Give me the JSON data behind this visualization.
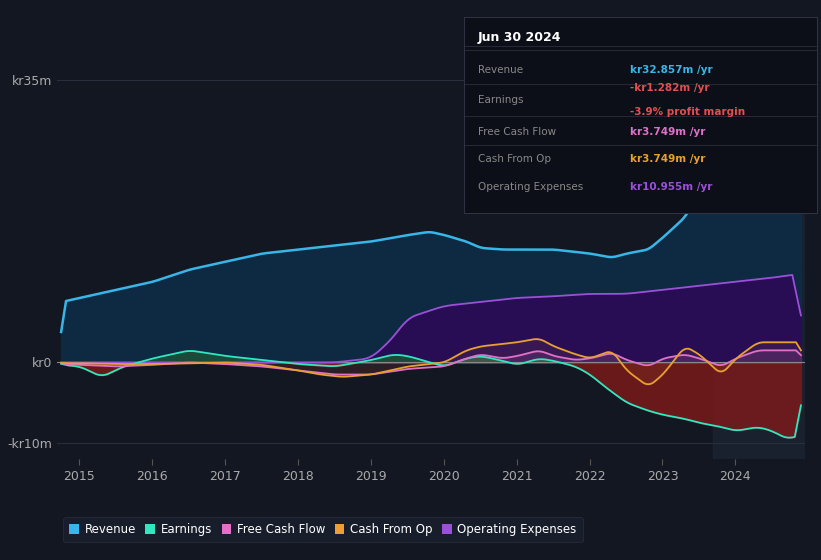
{
  "bg_color": "#131722",
  "revenue_color": "#38b6e8",
  "earnings_color": "#2ee8c0",
  "fcf_color": "#e070c8",
  "cashfromop_color": "#e8a030",
  "opex_color": "#9b50d8",
  "revenue_fill": "#0d2a42",
  "opex_fill": "#2a1050",
  "earnings_pos_fill": "#1a5a4a",
  "earnings_neg_fill": "#6a1a1a",
  "highlight_fill": "#1e2a38",
  "grid_color": "#2a2f3f",
  "zero_line_color": "#888888",
  "text_color": "#aaaaaa",
  "legend_bg": "#1a1f2e",
  "legend_edge": "#333344",
  "infobox_bg": "#0d0f18",
  "infobox_edge": "#333344",
  "ylim_min": -12,
  "ylim_max": 38,
  "xlim_min": 2014.7,
  "xlim_max": 2024.95,
  "xtick_years": [
    2015,
    2016,
    2017,
    2018,
    2019,
    2020,
    2021,
    2022,
    2023,
    2024
  ],
  "ytick_vals": [
    -10,
    0,
    35
  ],
  "ytick_labels": [
    "-kr10m",
    "kr0",
    "kr35m"
  ],
  "legend_items": [
    {
      "label": "Revenue",
      "color": "#38b6e8"
    },
    {
      "label": "Earnings",
      "color": "#2ee8c0"
    },
    {
      "label": "Free Cash Flow",
      "color": "#e070c8"
    },
    {
      "label": "Cash From Op",
      "color": "#e8a030"
    },
    {
      "label": "Operating Expenses",
      "color": "#9b50d8"
    }
  ],
  "infobox_title": "Jun 30 2024",
  "infobox_rows": [
    {
      "label": "Revenue",
      "value": "kr32.857m /yr",
      "color": "#38b6e8"
    },
    {
      "label": "Earnings",
      "value": "-kr1.282m /yr",
      "color": "#e05050",
      "sub": "-3.9% profit margin",
      "sub_color": "#e05050"
    },
    {
      "label": "Free Cash Flow",
      "value": "kr3.749m /yr",
      "color": "#e070c8"
    },
    {
      "label": "Cash From Op",
      "value": "kr3.749m /yr",
      "color": "#e8a030"
    },
    {
      "label": "Operating Expenses",
      "value": "kr10.955m /yr",
      "color": "#9b50d8"
    }
  ]
}
